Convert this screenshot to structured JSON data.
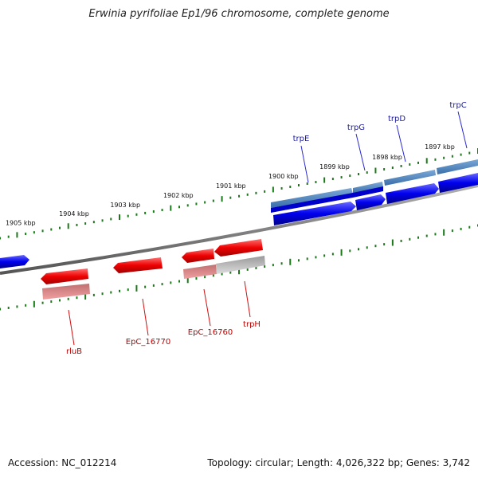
{
  "header": {
    "title": "Erwinia pyrifoliae Ep1/96 chromosome, complete genome"
  },
  "footer": {
    "accession": "Accession: NC_012214",
    "summary": "Topology: circular; Length: 4,026,322 bp; Genes: 3,742"
  },
  "ruler": {
    "labels": [
      "1905 kbp",
      "1904 kbp",
      "1903 kbp",
      "1902 kbp",
      "1901 kbp",
      "1900 kbp",
      "1899 kbp",
      "1898 kbp",
      "1897 kbp"
    ]
  },
  "top_genes": [
    {
      "name": "trpE"
    },
    {
      "name": "trpG"
    },
    {
      "name": "trpD"
    },
    {
      "name": "trpC"
    }
  ],
  "bottom_genes": [
    {
      "name": "rluB"
    },
    {
      "name": "EpC_16770"
    },
    {
      "name": "EpC_16760"
    },
    {
      "name": "trpH"
    }
  ],
  "colors": {
    "forward_strand": "#0000ee",
    "forward_strand_light": "#4a82c0",
    "reverse_strand": "#ee0000",
    "reverse_strand_light": "#e88080",
    "backbone": "#808080",
    "ruler_ticks": "#1a7a1a",
    "label_top": "#1a1aa0",
    "label_bottom": "#c00000"
  }
}
